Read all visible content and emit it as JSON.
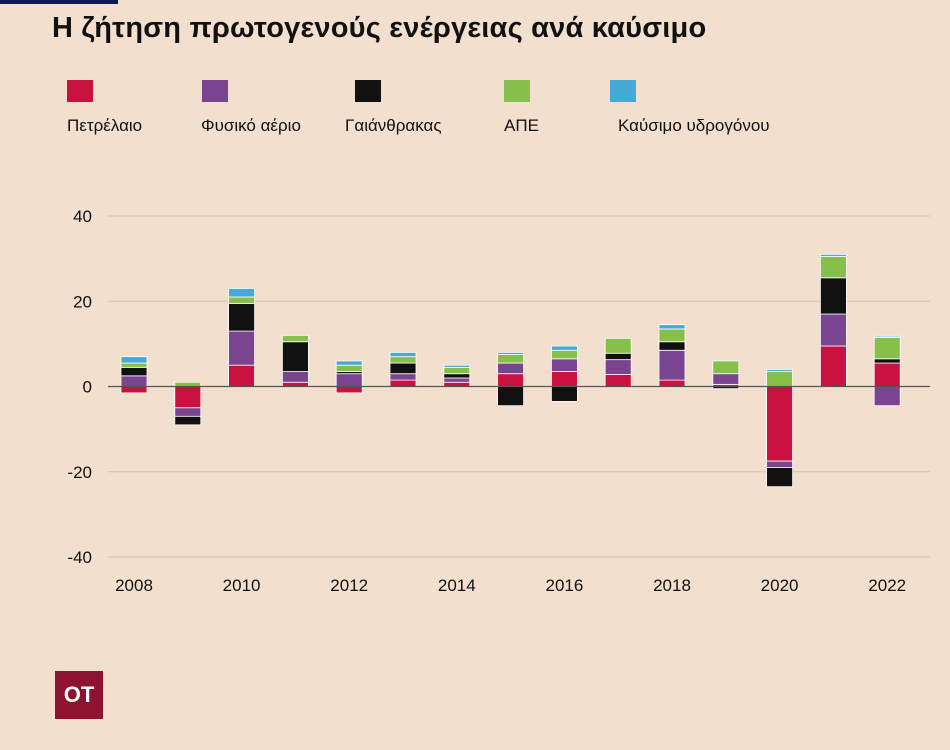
{
  "title": "Η ζήτηση πρωτογενούς ενέργειας ανά καύσιμο",
  "logo": "ΟΤ",
  "legend": [
    {
      "label": "Πετρέλαιο",
      "color": "#c9123f"
    },
    {
      "label": "Φυσικό αέριο",
      "color": "#7a4590"
    },
    {
      "label": "Γαιάνθρακας",
      "color": "#111111"
    },
    {
      "label": "ΑΠΕ",
      "color": "#86c04a"
    },
    {
      "label": "Καύσιμο υδρογόνου",
      "color": "#45abd6"
    }
  ],
  "chart_data": {
    "type": "bar",
    "stacked": true,
    "categories": [
      "2008",
      "2009",
      "2010",
      "2011",
      "2012",
      "2013",
      "2014",
      "2015",
      "2016",
      "2017",
      "2018",
      "2019",
      "2020",
      "2021",
      "2022"
    ],
    "x_tick_labels": [
      "2008",
      "",
      "2010",
      "",
      "2012",
      "",
      "2014",
      "",
      "2016",
      "",
      "2018",
      "",
      "2020",
      "",
      "2022"
    ],
    "y_ticks": [
      40,
      20,
      0,
      -20,
      -40
    ],
    "ylim": [
      -40,
      40
    ],
    "grid": true,
    "series": [
      {
        "name": "Πετρέλαιο",
        "color": "#c9123f",
        "values": [
          -1.5,
          -5,
          5,
          1,
          -1.5,
          1.5,
          1,
          3,
          3.5,
          2.8,
          1.5,
          0.5,
          -17.5,
          9.5,
          5.5
        ]
      },
      {
        "name": "Φυσικό αέριο",
        "color": "#7a4590",
        "values": [
          2.5,
          -2,
          8,
          2.5,
          3,
          1.5,
          1,
          2.5,
          3,
          3.5,
          7,
          2.5,
          -1.5,
          7.5,
          -4.5
        ]
      },
      {
        "name": "Γαιάνθρακας",
        "color": "#111111",
        "values": [
          2,
          -2,
          6.5,
          7,
          0.5,
          2.5,
          1,
          -4.5,
          -3.5,
          1.5,
          2,
          -0.5,
          -4.5,
          8.5,
          1
        ]
      },
      {
        "name": "ΑΠΕ",
        "color": "#86c04a",
        "values": [
          1,
          1,
          1.5,
          1.5,
          1.5,
          1.5,
          1.5,
          2,
          2,
          3.5,
          3,
          3,
          3.5,
          5,
          5
        ]
      },
      {
        "name": "Καύσιμο υδρογόνου",
        "color": "#45abd6",
        "values": [
          1.5,
          0,
          2,
          0,
          1,
          1,
          0.5,
          0.5,
          1,
          0,
          1,
          0,
          0.5,
          0.5,
          0.3
        ]
      }
    ]
  }
}
